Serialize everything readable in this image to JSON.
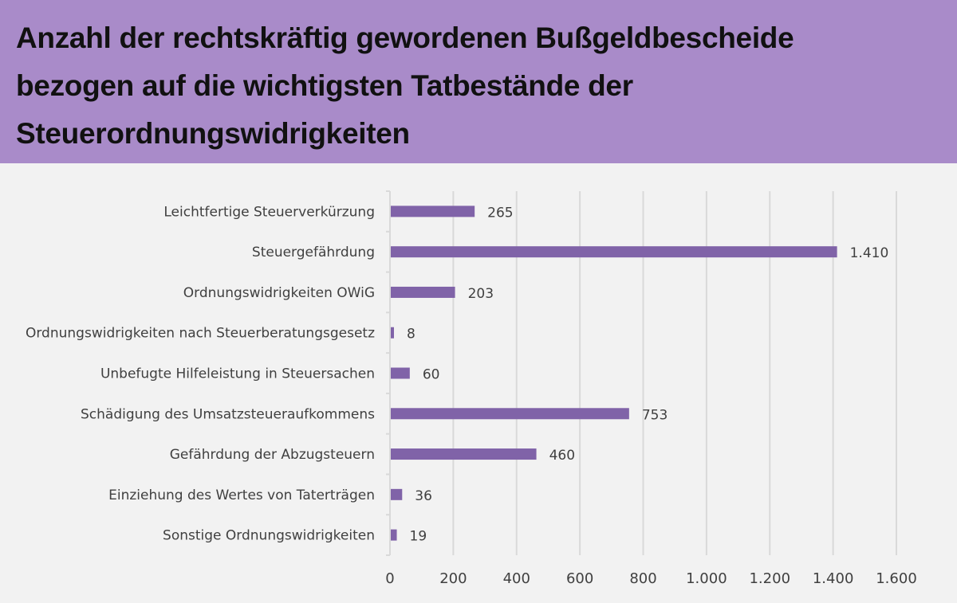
{
  "header": {
    "title": "Anzahl der rechtskräftig gewordenen Bußgeldbescheide bezogen auf die wichtigsten Tatbestände der Steuerordnungswidrigkeiten"
  },
  "colors": {
    "header_bg": "#a98bc9",
    "bar": "#8063a8",
    "background": "#f2f2f2",
    "grid": "#d9d9d9"
  },
  "chart_data": {
    "type": "bar",
    "orientation": "horizontal",
    "title": "Anzahl der rechtskräftig gewordenen Bußgeldbescheide bezogen auf die wichtigsten Tatbestände der Steuerordnungswidrigkeiten",
    "categories": [
      "Leichtfertige Steuerverkürzung",
      "Steuergefährdung",
      "Ordnungswidrigkeiten OWiG",
      "Ordnungswidrigkeiten nach Steuerberatungsgesetz",
      "Unbefugte Hilfeleistung in Steuersachen",
      "Schädigung des Umsatzsteueraufkommens",
      "Gefährdung der Abzugsteuern",
      "Einziehung des Wertes von Taterträgen",
      "Sonstige Ordnungswidrigkeiten"
    ],
    "values": [
      265,
      1410,
      203,
      8,
      60,
      753,
      460,
      36,
      19
    ],
    "data_labels": [
      "265",
      "1.410",
      "203",
      "8",
      "60",
      "753",
      "460",
      "36",
      "19"
    ],
    "xlim": [
      0,
      1600
    ],
    "xticks": [
      0,
      200,
      400,
      600,
      800,
      1000,
      1200,
      1400,
      1600
    ],
    "xtick_labels": [
      "0",
      "200",
      "400",
      "600",
      "800",
      "1.000",
      "1.200",
      "1.400",
      "1.600"
    ],
    "grid": "vertical",
    "legend": "none"
  }
}
